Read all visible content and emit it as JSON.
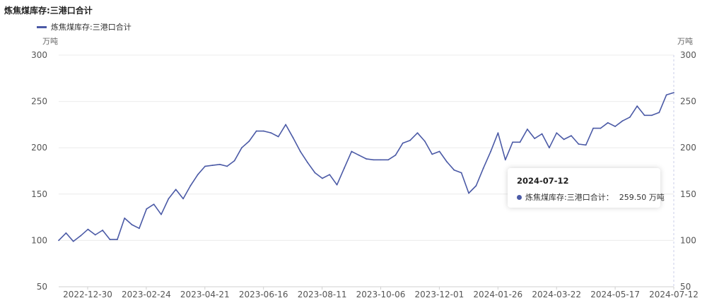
{
  "title": "炼焦煤库存:三港口合计",
  "legend": {
    "label": "炼焦煤库存:三港口合计"
  },
  "unit_left": "万吨",
  "unit_right": "万吨",
  "colors": {
    "series": "#4b5aa6",
    "grid": "#ececec",
    "axis_text": "#555555",
    "pointer": "#c8cdea"
  },
  "tooltip": {
    "date": "2024-07-12",
    "series_name": "炼焦煤库存:三港口合计：",
    "value_text": "259.50 万吨"
  },
  "chart_data": {
    "type": "line",
    "title": "炼焦煤库存:三港口合计",
    "ylabel_left": "万吨",
    "ylabel_right": "万吨",
    "ylim": [
      50,
      300
    ],
    "yticks": [
      50,
      100,
      150,
      200,
      250,
      300
    ],
    "x_tick_labels": [
      "2022-12-30",
      "2023-02-24",
      "2023-04-21",
      "2023-06-16",
      "2023-08-11",
      "2023-10-06",
      "2023-12-01",
      "2024-01-26",
      "2024-03-22",
      "2024-05-17",
      "2024-07-12"
    ],
    "grid": true,
    "legend_position": "top-left",
    "series": [
      {
        "name": "炼焦煤库存:三港口合计",
        "values": [
          100,
          108,
          99,
          105,
          112,
          106,
          111,
          101,
          101,
          124,
          117,
          113,
          134,
          139,
          128,
          145,
          155,
          145,
          159,
          171,
          180,
          181,
          182,
          180,
          186,
          200,
          207,
          218,
          218,
          216,
          212,
          225,
          211,
          196,
          184,
          173,
          167,
          171,
          160,
          178,
          196,
          192,
          188,
          187,
          187,
          187,
          192,
          205,
          208,
          216,
          207,
          193,
          196,
          185,
          176,
          173,
          151,
          159,
          178,
          196,
          216,
          187,
          206,
          206,
          220,
          210,
          215,
          200,
          216,
          209,
          213,
          204,
          203,
          221,
          221,
          227,
          223,
          229,
          233,
          245,
          235,
          235,
          238,
          257,
          259.5
        ]
      }
    ]
  }
}
